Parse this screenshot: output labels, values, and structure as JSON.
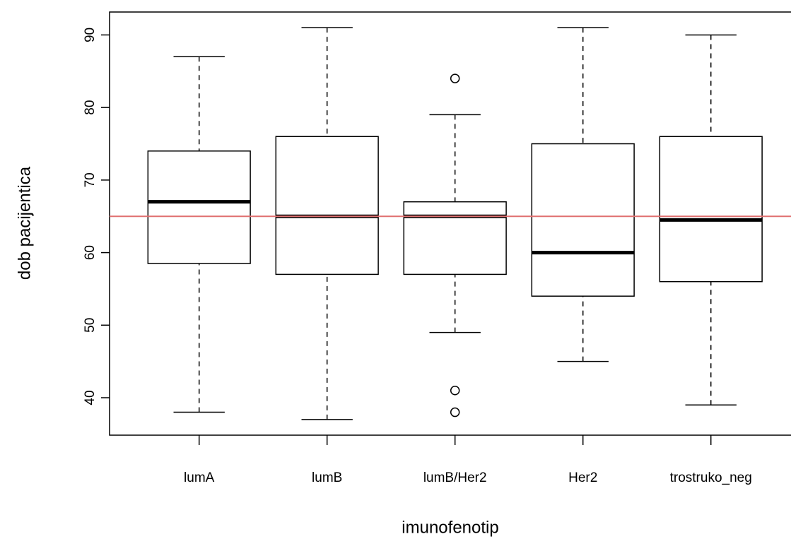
{
  "chart_data": {
    "type": "boxplot",
    "x_label": "imunofenotip",
    "y_label": "dob pacijentica",
    "categories": [
      "lumA",
      "lumB",
      "lumB/Her2",
      "Her2",
      "trostruko_neg"
    ],
    "min": [
      38,
      37,
      49,
      45,
      39
    ],
    "q1": [
      58.5,
      57,
      57,
      54,
      56
    ],
    "median": [
      67,
      65,
      65,
      60,
      64.5
    ],
    "q3": [
      74,
      76,
      67,
      75,
      76
    ],
    "max": [
      87,
      91,
      79,
      91,
      90
    ],
    "outliers": [
      [],
      [],
      [
        84,
        41,
        38
      ],
      [],
      []
    ],
    "color": "#000000",
    "hline": 65,
    "hline_color": "#e07070",
    "ylim": [
      34.84,
      93.16
    ],
    "yticks": [
      40,
      50,
      60,
      70,
      80,
      90
    ]
  }
}
